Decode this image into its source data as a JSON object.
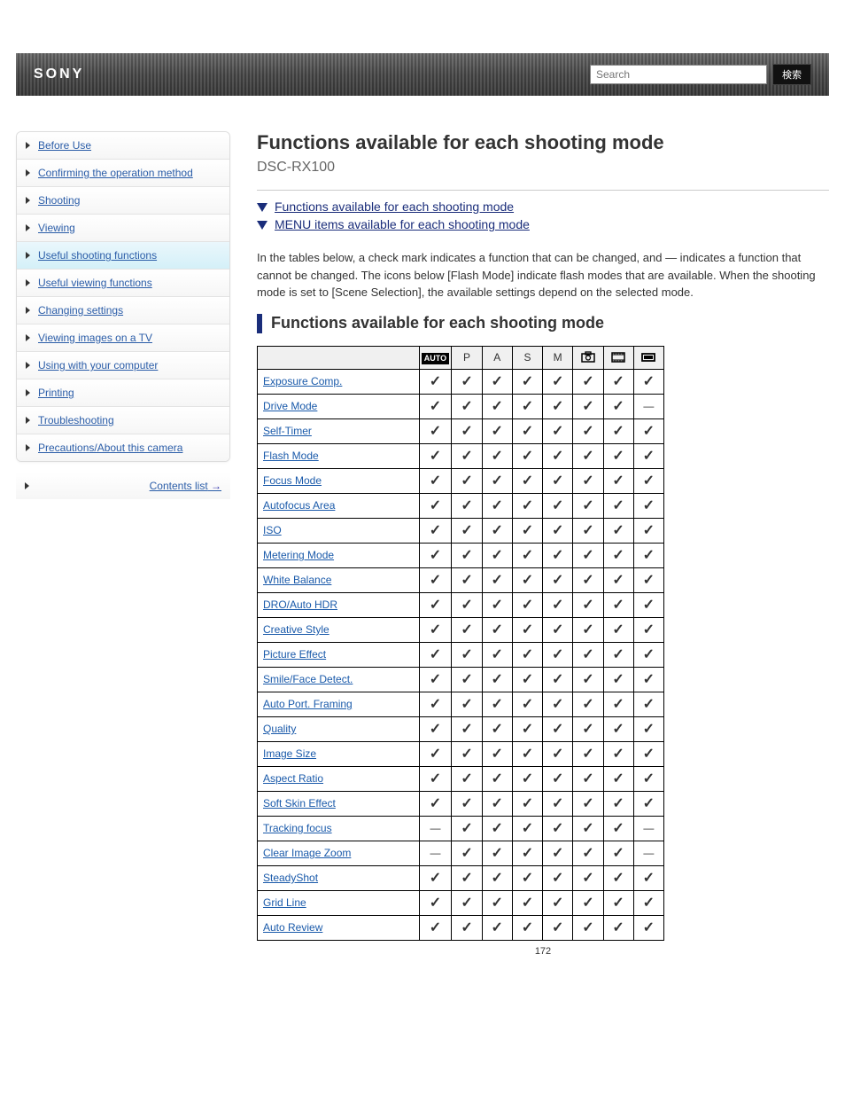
{
  "topbar": {
    "brand": "SONY",
    "search_placeholder": "Search",
    "search_btn": "検索"
  },
  "sidebar": {
    "items": [
      {
        "label": "Before Use",
        "active": false
      },
      {
        "label": "Confirming the operation method",
        "active": false
      },
      {
        "label": "Shooting",
        "active": false
      },
      {
        "label": "Viewing",
        "active": false
      },
      {
        "label": "Useful shooting functions",
        "active": true
      },
      {
        "label": "Useful viewing functions",
        "active": false
      },
      {
        "label": "Changing settings",
        "active": false
      },
      {
        "label": "Viewing images on a TV",
        "active": false
      },
      {
        "label": "Using with your computer",
        "active": false
      },
      {
        "label": "Printing",
        "active": false
      },
      {
        "label": "Troubleshooting",
        "active": false
      },
      {
        "label": "Precautions/About this camera",
        "active": false
      }
    ],
    "more": "Contents list"
  },
  "title": "Functions available for each shooting mode",
  "breadcrumb": "DSC-RX100",
  "sections": [
    {
      "label": "Functions available for each shooting mode"
    },
    {
      "label": "MENU items available for each shooting mode"
    }
  ],
  "desc": "In the tables below, a check mark indicates a function that can be changed, and — indicates a function that cannot be changed. The icons below [Flash Mode] indicate flash modes that are available. When the shooting mode is set to [Scene Selection], the available settings depend on the selected mode.",
  "section_title": "Functions available for each shooting mode",
  "columns": [
    "",
    "AUTO",
    "P",
    "A",
    "S",
    "M",
    "SCN",
    "MOVIE",
    "SWEEP"
  ],
  "rows": [
    {
      "label": "Exposure Comp.",
      "v": [
        1,
        1,
        1,
        1,
        1,
        1,
        1,
        1
      ]
    },
    {
      "label": "Drive Mode",
      "v": [
        1,
        1,
        1,
        1,
        1,
        1,
        1,
        0
      ]
    },
    {
      "label": "Self-Timer",
      "v": [
        1,
        1,
        1,
        1,
        1,
        1,
        1,
        1
      ]
    },
    {
      "label": "Flash Mode",
      "v": [
        1,
        1,
        1,
        1,
        1,
        1,
        1,
        1
      ]
    },
    {
      "label": "Focus Mode",
      "v": [
        1,
        1,
        1,
        1,
        1,
        1,
        1,
        1
      ]
    },
    {
      "label": "Autofocus Area",
      "v": [
        1,
        1,
        1,
        1,
        1,
        1,
        1,
        1
      ]
    },
    {
      "label": "ISO",
      "v": [
        1,
        1,
        1,
        1,
        1,
        1,
        1,
        1
      ]
    },
    {
      "label": "Metering Mode",
      "v": [
        1,
        1,
        1,
        1,
        1,
        1,
        1,
        1
      ]
    },
    {
      "label": "White Balance",
      "v": [
        1,
        1,
        1,
        1,
        1,
        1,
        1,
        1
      ]
    },
    {
      "label": "DRO/Auto HDR",
      "v": [
        1,
        1,
        1,
        1,
        1,
        1,
        1,
        1
      ]
    },
    {
      "label": "Creative Style",
      "v": [
        1,
        1,
        1,
        1,
        1,
        1,
        1,
        1
      ]
    },
    {
      "label": "Picture Effect",
      "v": [
        1,
        1,
        1,
        1,
        1,
        1,
        1,
        1
      ]
    },
    {
      "label": "Smile/Face Detect.",
      "v": [
        1,
        1,
        1,
        1,
        1,
        1,
        1,
        1
      ]
    },
    {
      "label": "Auto Port. Framing",
      "v": [
        1,
        1,
        1,
        1,
        1,
        1,
        1,
        1
      ]
    },
    {
      "label": "Quality",
      "v": [
        1,
        1,
        1,
        1,
        1,
        1,
        1,
        1
      ]
    },
    {
      "label": "Image Size",
      "v": [
        1,
        1,
        1,
        1,
        1,
        1,
        1,
        1
      ]
    },
    {
      "label": "Aspect Ratio",
      "v": [
        1,
        1,
        1,
        1,
        1,
        1,
        1,
        1
      ]
    },
    {
      "label": "Soft Skin Effect",
      "v": [
        1,
        1,
        1,
        1,
        1,
        1,
        1,
        1
      ]
    },
    {
      "label": "Tracking focus",
      "v": [
        0,
        1,
        1,
        1,
        1,
        1,
        1,
        0
      ]
    },
    {
      "label": "Clear Image Zoom",
      "v": [
        0,
        1,
        1,
        1,
        1,
        1,
        1,
        0
      ]
    },
    {
      "label": "SteadyShot",
      "v": [
        1,
        1,
        1,
        1,
        1,
        1,
        1,
        1
      ]
    },
    {
      "label": "Grid Line",
      "v": [
        1,
        1,
        1,
        1,
        1,
        1,
        1,
        1
      ]
    },
    {
      "label": "Auto Review",
      "v": [
        1,
        1,
        1,
        1,
        1,
        1,
        1,
        1
      ]
    }
  ],
  "page_number": "172",
  "colors": {
    "accent": "#1a2d7a",
    "link": "#1a5aaa"
  }
}
